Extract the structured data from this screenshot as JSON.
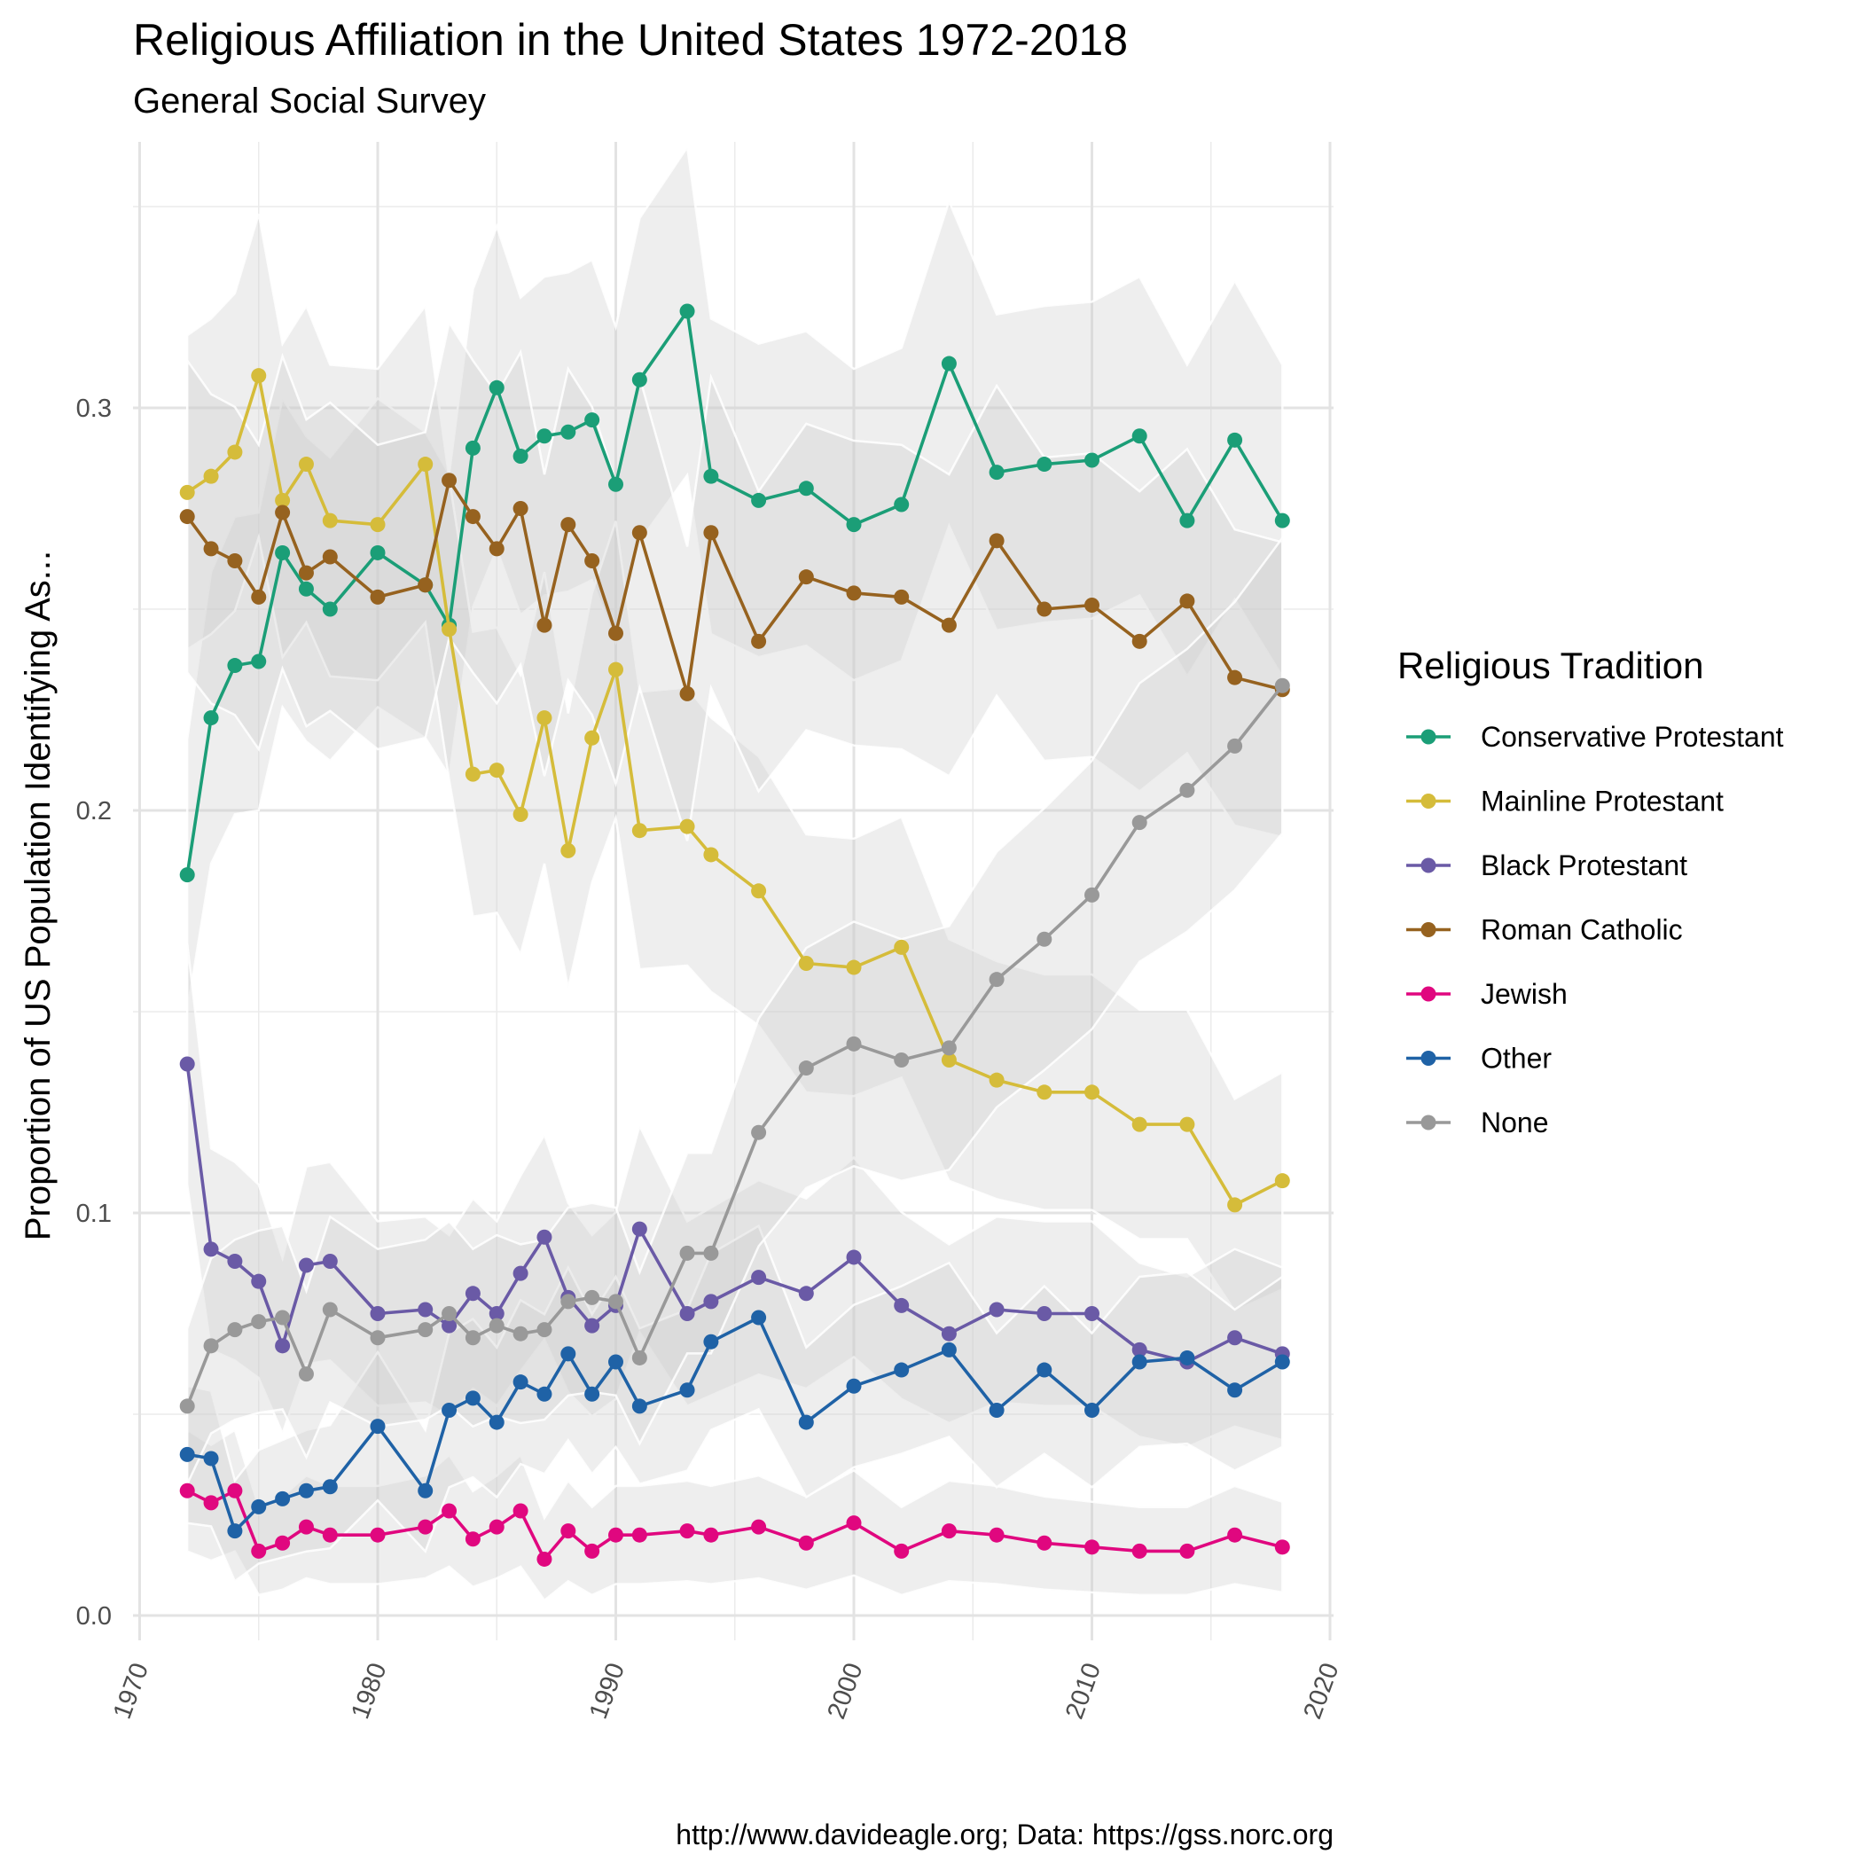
{
  "chart_data": {
    "type": "line",
    "title": "Religious Affiliation in the United States 1972-2018",
    "subtitle": "General Social Survey",
    "ylabel": "Proportion of US Population Identifying As...",
    "xlabel": "",
    "caption": "http://www.davideagle.org; Data: https://gss.norc.org",
    "legend_title": "Religious Tradition",
    "legend_position": "right",
    "grid": true,
    "xlim": [
      1970,
      2020
    ],
    "ylim": [
      0,
      0.35
    ],
    "x_ticks": [
      "1970",
      "1980",
      "1990",
      "2000",
      "2010",
      "2020"
    ],
    "y_ticks": [
      "0.0",
      "0.1",
      "0.2",
      "0.3"
    ],
    "x": [
      1972,
      1973,
      1974,
      1975,
      1976,
      1977,
      1978,
      1980,
      1982,
      1983,
      1984,
      1985,
      1986,
      1987,
      1988,
      1989,
      1990,
      1991,
      1993,
      1994,
      1996,
      1998,
      2000,
      2002,
      2004,
      2006,
      2008,
      2010,
      2012,
      2014,
      2016,
      2018
    ],
    "series": [
      {
        "name": "Conservative Protestant",
        "color": "#1b9e77",
        "values": [
          0.184,
          0.223,
          0.236,
          0.237,
          0.264,
          0.255,
          0.25,
          0.264,
          0.256,
          0.246,
          0.29,
          0.305,
          0.288,
          0.293,
          0.294,
          0.297,
          0.281,
          0.307,
          0.324,
          0.283,
          0.277,
          0.28,
          0.271,
          0.276,
          0.311,
          0.284,
          0.286,
          0.287,
          0.293,
          0.272,
          0.292,
          0.272
        ]
      },
      {
        "name": "Mainline Protestant",
        "color": "#d5bc3a",
        "values": [
          0.279,
          0.283,
          0.289,
          0.308,
          0.277,
          0.286,
          0.272,
          0.271,
          0.286,
          0.245,
          0.209,
          0.21,
          0.199,
          0.223,
          0.19,
          0.218,
          0.235,
          0.195,
          0.196,
          0.189,
          0.18,
          0.162,
          0.161,
          0.166,
          0.138,
          0.133,
          0.13,
          0.13,
          0.122,
          0.122,
          0.102,
          0.108
        ]
      },
      {
        "name": "Black Protestant",
        "color": "#6a5aa6",
        "values": [
          0.137,
          0.091,
          0.088,
          0.083,
          0.067,
          0.087,
          0.088,
          0.075,
          0.076,
          0.072,
          0.08,
          0.075,
          0.085,
          0.094,
          0.079,
          0.072,
          0.077,
          0.096,
          0.075,
          0.078,
          0.084,
          0.08,
          0.089,
          0.077,
          0.07,
          0.076,
          0.075,
          0.075,
          0.066,
          0.063,
          0.069,
          0.065
        ]
      },
      {
        "name": "Roman Catholic",
        "color": "#96621f",
        "values": [
          0.273,
          0.265,
          0.262,
          0.253,
          0.274,
          0.259,
          0.263,
          0.253,
          0.256,
          0.282,
          0.273,
          0.265,
          0.275,
          0.246,
          0.271,
          0.262,
          0.244,
          0.269,
          0.229,
          0.269,
          0.242,
          0.258,
          0.254,
          0.253,
          0.246,
          0.267,
          0.25,
          0.251,
          0.242,
          0.252,
          0.233,
          0.23
        ]
      },
      {
        "name": "Jewish",
        "color": "#e0077f",
        "values": [
          0.031,
          0.028,
          0.031,
          0.016,
          0.018,
          0.022,
          0.02,
          0.02,
          0.022,
          0.026,
          0.019,
          0.022,
          0.026,
          0.014,
          0.021,
          0.016,
          0.02,
          0.02,
          0.021,
          0.02,
          0.022,
          0.018,
          0.023,
          0.016,
          0.021,
          0.02,
          0.018,
          0.017,
          0.016,
          0.016,
          0.02,
          0.017
        ]
      },
      {
        "name": "Other",
        "color": "#1f62a6",
        "values": [
          0.04,
          0.039,
          0.021,
          0.027,
          0.029,
          0.031,
          0.032,
          0.047,
          0.031,
          0.051,
          0.054,
          0.048,
          0.058,
          0.055,
          0.065,
          0.055,
          0.063,
          0.052,
          0.056,
          0.068,
          0.074,
          0.048,
          0.057,
          0.061,
          0.066,
          0.051,
          0.061,
          0.051,
          0.063,
          0.064,
          0.056,
          0.063
        ]
      },
      {
        "name": "None",
        "color": "#999999",
        "values": [
          0.052,
          0.067,
          0.071,
          0.073,
          0.074,
          0.06,
          0.076,
          0.069,
          0.071,
          0.075,
          0.069,
          0.072,
          0.07,
          0.071,
          0.078,
          0.079,
          0.078,
          0.064,
          0.09,
          0.09,
          0.12,
          0.136,
          0.142,
          0.138,
          0.141,
          0.158,
          0.168,
          0.179,
          0.197,
          0.205,
          0.216,
          0.231
        ]
      }
    ]
  }
}
